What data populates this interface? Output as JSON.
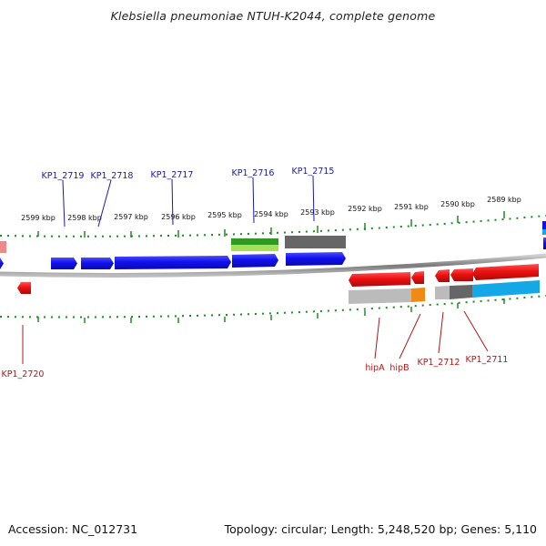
{
  "title": "Klebsiella pneumoniae NTUH-K2044, complete genome",
  "footer": {
    "accession": "Accession: NC_012731",
    "summary": "Topology: circular; Length: 5,248,520 bp; Genes: 5,110"
  },
  "ruler": {
    "labels": [
      "2599 kbp",
      "2598 kbp",
      "2597 kbp",
      "2596 kbp",
      "2595 kbp",
      "2594 kbp",
      "2593 kbp",
      "2592 kbp",
      "2591 kbp",
      "2590 kbp",
      "2589 kbp"
    ]
  },
  "gene_labels": {
    "forward": [
      "KP1_2719",
      "KP1_2718",
      "KP1_2717",
      "KP1_2716",
      "KP1_2715"
    ],
    "reverse": [
      "KP1_2720",
      "hipA",
      "hipB",
      "KP1_2712",
      "KP1_2711"
    ]
  },
  "colors": {
    "forward_gene": "#1111ee",
    "reverse_gene": "#ee1111",
    "forward_label": "#1a1aa8",
    "reverse_label": "#b01818",
    "tick": "#228822",
    "backbone": "#888888",
    "feature_gray": "#666666",
    "feature_light_gray": "#bbbbbb",
    "feature_green": "#2f9a1f",
    "feature_light_green": "#a6e05a",
    "feature_orange": "#f08a12",
    "feature_cyan": "#14a8e6",
    "feature_pink": "#f08888"
  }
}
